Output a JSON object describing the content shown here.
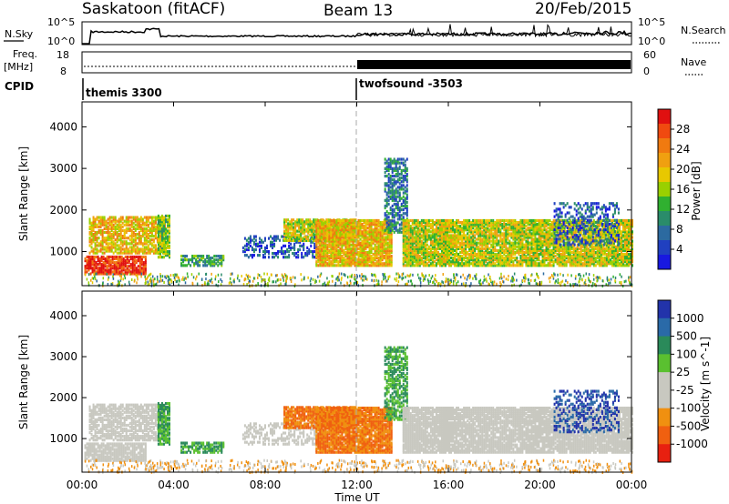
{
  "header": {
    "station": "Saskatoon (fitACF)",
    "beam": "Beam 13",
    "date": "20/Feb/2015"
  },
  "summary_panels": {
    "nsky_label": "N.Sky",
    "nsky_ticks": [
      "10^5",
      "10^0"
    ],
    "nsearch_label": "N.Search",
    "nsearch_ticks": [
      "10^5",
      "10^0"
    ],
    "freq_label_1": "Freq.",
    "freq_label_2": "[MHz]",
    "freq_ticks": [
      "18",
      "8"
    ],
    "nave_label": "Nave",
    "nave_ticks": [
      "60",
      "0"
    ],
    "cpid_label": "CPID",
    "cpid_modes": [
      {
        "name": "themis 3300",
        "start_hour": 0
      },
      {
        "name": "twofsound -3503",
        "start_hour": 12
      }
    ]
  },
  "power_colorbar": {
    "title": "Power [dB]",
    "ticks": [
      "28",
      "24",
      "20",
      "16",
      "12",
      "8",
      "4"
    ],
    "colors": [
      "#e01010",
      "#f04a10",
      "#f07a10",
      "#f0a010",
      "#e8c800",
      "#9ad000",
      "#30b030",
      "#2a8c6a",
      "#2c6aa0",
      "#2040c0",
      "#1818e0"
    ]
  },
  "velocity_colorbar": {
    "title": "Velocity [m s^-1]",
    "ticks": [
      "1000",
      "500",
      "100",
      "25",
      "-25",
      "-100",
      "-500",
      "-1000"
    ],
    "colors": [
      "#2233aa",
      "#2a6aa8",
      "#2a8a5a",
      "#5ac030",
      "#c8c8c0",
      "#c8c8c0",
      "#f09010",
      "#f06010",
      "#e82010"
    ]
  },
  "chart_data": [
    {
      "type": "heatmap",
      "name": "Power",
      "ylabel": "Slant Range [km]",
      "y_ticks": [
        "1000",
        "2000",
        "3000",
        "4000"
      ],
      "xlabel": "Time UT",
      "x_ticks": [
        "00:00",
        "04:00",
        "08:00",
        "12:00",
        "16:00",
        "20:00",
        "00:00"
      ],
      "x_range_hours": [
        0,
        24
      ],
      "y_range_km": [
        180,
        4600
      ]
    },
    {
      "type": "heatmap",
      "name": "Velocity",
      "ylabel": "Slant Range [km]",
      "y_ticks": [
        "1000",
        "2000",
        "3000",
        "4000"
      ],
      "xlabel": "Time UT",
      "x_ticks": [
        "00:00",
        "04:00",
        "08:00",
        "12:00",
        "16:00",
        "20:00",
        "00:00"
      ],
      "x_range_hours": [
        0,
        24
      ],
      "y_range_km": [
        180,
        4600
      ]
    }
  ]
}
